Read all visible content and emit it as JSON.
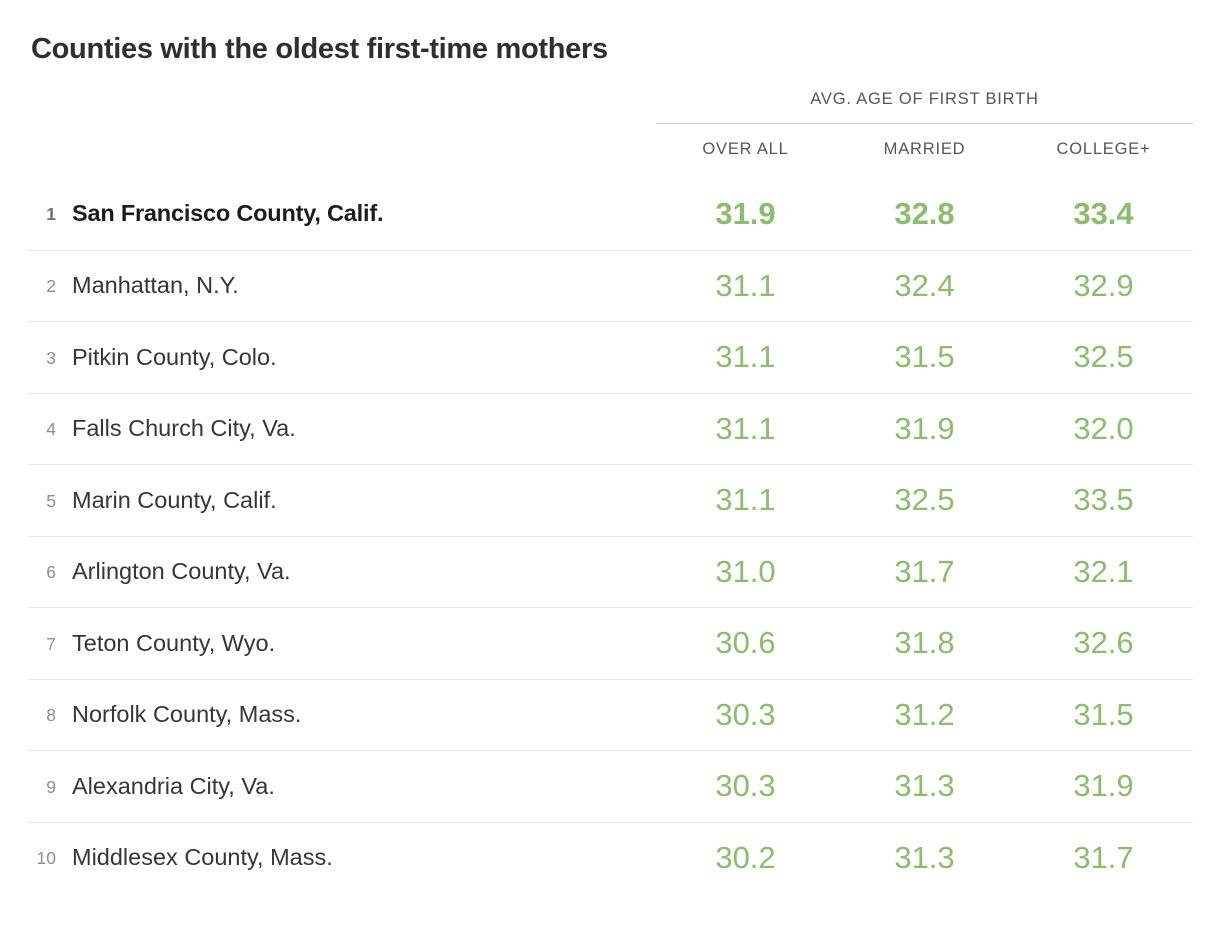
{
  "colors": {
    "value_green": "#8cbc6d",
    "title_dark": "#2f2f2f",
    "header_gray": "#565656",
    "rank_gray": "#8e8e8e",
    "row_divider": "#e8e8e8",
    "header_rule": "#c9c9c9"
  },
  "chart_data": {
    "type": "table",
    "title": "Counties with the oldest first-time mothers",
    "group_header": "AVG. AGE OF FIRST BIRTH",
    "columns": [
      "OVER ALL",
      "MARRIED",
      "COLLEGE+"
    ],
    "rows": [
      {
        "rank": "1",
        "county": "San Francisco County, Calif.",
        "overall": "31.9",
        "married": "32.8",
        "college_plus": "33.4",
        "highlight": true
      },
      {
        "rank": "2",
        "county": "Manhattan, N.Y.",
        "overall": "31.1",
        "married": "32.4",
        "college_plus": "32.9",
        "highlight": false
      },
      {
        "rank": "3",
        "county": "Pitkin County, Colo.",
        "overall": "31.1",
        "married": "31.5",
        "college_plus": "32.5",
        "highlight": false
      },
      {
        "rank": "4",
        "county": "Falls Church City, Va.",
        "overall": "31.1",
        "married": "31.9",
        "college_plus": "32.0",
        "highlight": false
      },
      {
        "rank": "5",
        "county": "Marin County, Calif.",
        "overall": "31.1",
        "married": "32.5",
        "college_plus": "33.5",
        "highlight": false
      },
      {
        "rank": "6",
        "county": "Arlington County, Va.",
        "overall": "31.0",
        "married": "31.7",
        "college_plus": "32.1",
        "highlight": false
      },
      {
        "rank": "7",
        "county": "Teton County, Wyo.",
        "overall": "30.6",
        "married": "31.8",
        "college_plus": "32.6",
        "highlight": false
      },
      {
        "rank": "8",
        "county": "Norfolk County, Mass.",
        "overall": "30.3",
        "married": "31.2",
        "college_plus": "31.5",
        "highlight": false
      },
      {
        "rank": "9",
        "county": "Alexandria City, Va.",
        "overall": "30.3",
        "married": "31.3",
        "college_plus": "31.9",
        "highlight": false
      },
      {
        "rank": "10",
        "county": "Middlesex County, Mass.",
        "overall": "30.2",
        "married": "31.3",
        "college_plus": "31.7",
        "highlight": false
      }
    ]
  }
}
